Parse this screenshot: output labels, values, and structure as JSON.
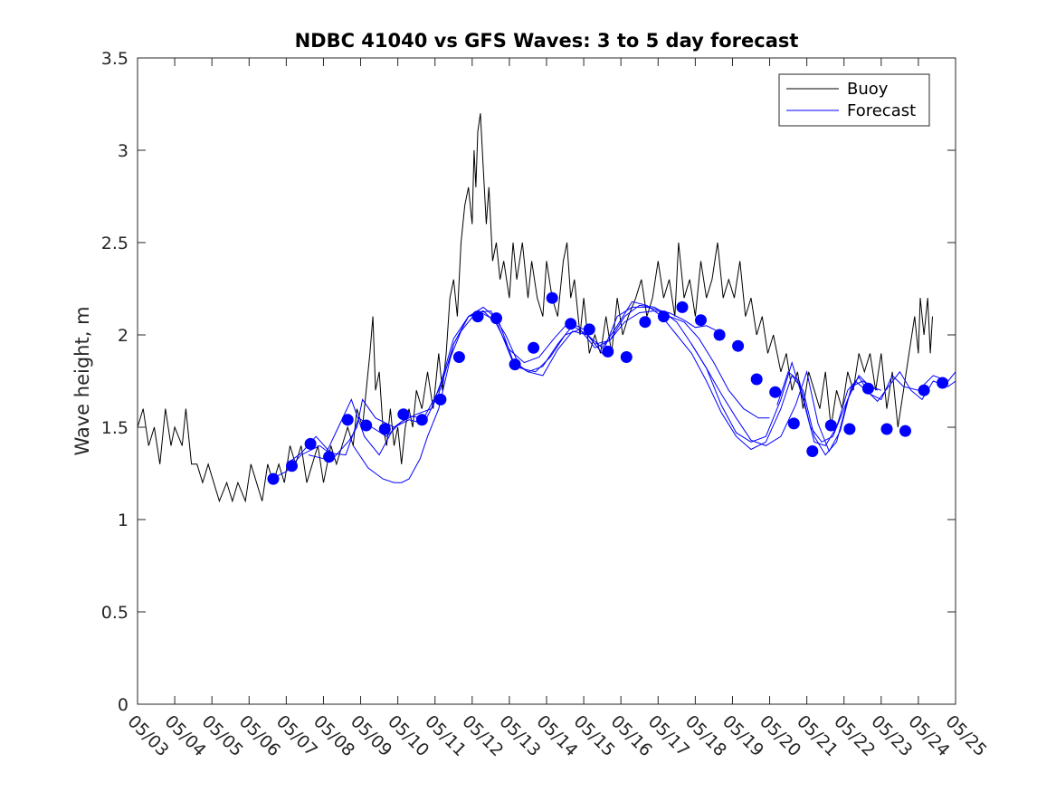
{
  "chart_data": {
    "type": "line",
    "title": "NDBC 41040 vs GFS Waves: 3 to 5 day forecast",
    "xlabel": "",
    "ylabel": "Wave height, m",
    "xlim": [
      "05/03",
      "05/25"
    ],
    "ylim": [
      0,
      3.5
    ],
    "x_tick_labels": [
      "05/03",
      "05/04",
      "05/05",
      "05/06",
      "05/07",
      "05/08",
      "05/09",
      "05/10",
      "05/11",
      "05/12",
      "05/13",
      "05/14",
      "05/15",
      "05/16",
      "05/17",
      "05/18",
      "05/19",
      "05/20",
      "05/21",
      "05/22",
      "05/23",
      "05/24",
      "05/25"
    ],
    "y_ticks": [
      0,
      0.5,
      1,
      1.5,
      2,
      2.5,
      3,
      3.5
    ],
    "y_tick_labels": [
      "0",
      "0.5",
      "1",
      "1.5",
      "2",
      "2.5",
      "3",
      "3.5"
    ],
    "grid": false,
    "legend": {
      "position": "top-right",
      "entries": [
        "Buoy",
        "Forecast"
      ]
    },
    "colors": {
      "buoy": "#000000",
      "forecast": "#0000ff"
    },
    "buoy_series": [
      [
        0,
        1.5
      ],
      [
        0.15,
        1.6
      ],
      [
        0.3,
        1.4
      ],
      [
        0.45,
        1.5
      ],
      [
        0.6,
        1.3
      ],
      [
        0.75,
        1.6
      ],
      [
        0.9,
        1.4
      ],
      [
        1.0,
        1.5
      ],
      [
        1.2,
        1.4
      ],
      [
        1.3,
        1.6
      ],
      [
        1.45,
        1.3
      ],
      [
        1.6,
        1.3
      ],
      [
        1.75,
        1.2
      ],
      [
        1.9,
        1.3
      ],
      [
        2.05,
        1.2
      ],
      [
        2.2,
        1.1
      ],
      [
        2.4,
        1.2
      ],
      [
        2.55,
        1.1
      ],
      [
        2.7,
        1.2
      ],
      [
        2.9,
        1.1
      ],
      [
        3.05,
        1.3
      ],
      [
        3.2,
        1.2
      ],
      [
        3.35,
        1.1
      ],
      [
        3.5,
        1.3
      ],
      [
        3.65,
        1.2
      ],
      [
        3.8,
        1.3
      ],
      [
        3.95,
        1.2
      ],
      [
        4.1,
        1.4
      ],
      [
        4.25,
        1.3
      ],
      [
        4.4,
        1.4
      ],
      [
        4.55,
        1.2
      ],
      [
        4.7,
        1.3
      ],
      [
        4.85,
        1.4
      ],
      [
        5.0,
        1.2
      ],
      [
        5.2,
        1.4
      ],
      [
        5.35,
        1.3
      ],
      [
        5.5,
        1.4
      ],
      [
        5.65,
        1.5
      ],
      [
        5.8,
        1.4
      ],
      [
        5.9,
        1.6
      ],
      [
        6.05,
        1.5
      ],
      [
        6.15,
        1.7
      ],
      [
        6.25,
        1.9
      ],
      [
        6.33,
        2.1
      ],
      [
        6.4,
        1.7
      ],
      [
        6.5,
        1.8
      ],
      [
        6.6,
        1.5
      ],
      [
        6.7,
        1.4
      ],
      [
        6.8,
        1.6
      ],
      [
        6.9,
        1.4
      ],
      [
        7.0,
        1.5
      ],
      [
        7.1,
        1.3
      ],
      [
        7.2,
        1.5
      ],
      [
        7.3,
        1.6
      ],
      [
        7.4,
        1.5
      ],
      [
        7.5,
        1.7
      ],
      [
        7.65,
        1.6
      ],
      [
        7.8,
        1.8
      ],
      [
        7.95,
        1.6
      ],
      [
        8.1,
        1.9
      ],
      [
        8.2,
        1.7
      ],
      [
        8.3,
        1.9
      ],
      [
        8.4,
        2.2
      ],
      [
        8.5,
        2.3
      ],
      [
        8.6,
        2.1
      ],
      [
        8.7,
        2.5
      ],
      [
        8.8,
        2.7
      ],
      [
        8.9,
        2.8
      ],
      [
        9.0,
        2.6
      ],
      [
        9.05,
        3.0
      ],
      [
        9.1,
        2.8
      ],
      [
        9.15,
        3.1
      ],
      [
        9.22,
        3.2
      ],
      [
        9.3,
        2.9
      ],
      [
        9.38,
        2.6
      ],
      [
        9.45,
        2.8
      ],
      [
        9.55,
        2.4
      ],
      [
        9.65,
        2.5
      ],
      [
        9.75,
        2.3
      ],
      [
        9.85,
        2.4
      ],
      [
        10.0,
        2.2
      ],
      [
        10.1,
        2.5
      ],
      [
        10.2,
        2.3
      ],
      [
        10.35,
        2.5
      ],
      [
        10.5,
        2.2
      ],
      [
        10.6,
        2.4
      ],
      [
        10.75,
        2.2
      ],
      [
        10.9,
        2.1
      ],
      [
        11.0,
        2.4
      ],
      [
        11.15,
        2.2
      ],
      [
        11.3,
        2.1
      ],
      [
        11.45,
        2.4
      ],
      [
        11.55,
        2.5
      ],
      [
        11.65,
        2.2
      ],
      [
        11.75,
        2.3
      ],
      [
        11.9,
        2.0
      ],
      [
        12.0,
        2.2
      ],
      [
        12.15,
        1.9
      ],
      [
        12.3,
        2.0
      ],
      [
        12.45,
        1.9
      ],
      [
        12.6,
        2.1
      ],
      [
        12.75,
        1.9
      ],
      [
        12.9,
        2.2
      ],
      [
        13.05,
        2.0
      ],
      [
        13.2,
        2.1
      ],
      [
        13.4,
        2.2
      ],
      [
        13.55,
        2.3
      ],
      [
        13.7,
        2.1
      ],
      [
        13.85,
        2.2
      ],
      [
        14.0,
        2.4
      ],
      [
        14.15,
        2.2
      ],
      [
        14.3,
        2.3
      ],
      [
        14.45,
        2.1
      ],
      [
        14.55,
        2.5
      ],
      [
        14.7,
        2.2
      ],
      [
        14.85,
        2.3
      ],
      [
        15.0,
        2.1
      ],
      [
        15.15,
        2.4
      ],
      [
        15.3,
        2.2
      ],
      [
        15.45,
        2.3
      ],
      [
        15.6,
        2.5
      ],
      [
        15.75,
        2.2
      ],
      [
        15.9,
        2.3
      ],
      [
        16.05,
        2.2
      ],
      [
        16.2,
        2.4
      ],
      [
        16.35,
        2.1
      ],
      [
        16.5,
        2.2
      ],
      [
        16.65,
        2.0
      ],
      [
        16.8,
        2.1
      ],
      [
        16.95,
        1.9
      ],
      [
        17.1,
        2.0
      ],
      [
        17.3,
        1.8
      ],
      [
        17.45,
        1.9
      ],
      [
        17.6,
        1.7
      ],
      [
        17.75,
        1.8
      ],
      [
        17.9,
        1.6
      ],
      [
        18.05,
        1.8
      ],
      [
        18.2,
        1.7
      ],
      [
        18.35,
        1.6
      ],
      [
        18.5,
        1.8
      ],
      [
        18.65,
        1.5
      ],
      [
        18.8,
        1.7
      ],
      [
        18.95,
        1.6
      ],
      [
        19.1,
        1.8
      ],
      [
        19.25,
        1.7
      ],
      [
        19.4,
        1.9
      ],
      [
        19.55,
        1.8
      ],
      [
        19.7,
        1.9
      ],
      [
        19.85,
        1.7
      ],
      [
        20.0,
        1.9
      ],
      [
        20.15,
        1.6
      ],
      [
        20.3,
        1.8
      ],
      [
        20.45,
        1.5
      ],
      [
        20.6,
        1.7
      ],
      [
        20.75,
        1.9
      ],
      [
        20.9,
        2.1
      ],
      [
        21.0,
        1.9
      ],
      [
        21.05,
        2.2
      ],
      [
        21.15,
        2.0
      ],
      [
        21.25,
        2.2
      ],
      [
        21.32,
        1.9
      ],
      [
        21.38,
        2.1
      ]
    ],
    "forecast_lines": [
      [
        [
          3.6,
          1.22
        ],
        [
          4.0,
          1.26
        ],
        [
          4.4,
          1.35
        ],
        [
          4.9,
          1.4
        ],
        [
          5.3,
          1.34
        ],
        [
          5.7,
          1.43
        ],
        [
          5.9,
          1.5
        ],
        [
          6.05,
          1.65
        ],
        [
          6.4,
          1.55
        ],
        [
          6.9,
          1.5
        ],
        [
          7.3,
          1.56
        ],
        [
          7.7,
          1.55
        ],
        [
          8.1,
          1.7
        ],
        [
          8.5,
          1.98
        ],
        [
          8.9,
          2.1
        ],
        [
          9.25,
          2.12
        ],
        [
          9.6,
          2.08
        ],
        [
          10.0,
          1.92
        ],
        [
          10.4,
          1.85
        ],
        [
          10.8,
          1.88
        ],
        [
          11.2,
          1.98
        ],
        [
          11.6,
          2.07
        ],
        [
          12.0,
          2.03
        ],
        [
          12.3,
          1.95
        ],
        [
          12.7,
          1.97
        ],
        [
          13.1,
          2.07
        ],
        [
          13.5,
          2.12
        ],
        [
          13.9,
          2.13
        ],
        [
          14.3,
          2.12
        ],
        [
          14.7,
          2.08
        ],
        [
          15.0,
          2.04
        ],
        [
          15.3,
          2.05
        ],
        [
          15.6,
          2.02
        ]
      ],
      [
        [
          4.0,
          1.3
        ],
        [
          4.4,
          1.36
        ],
        [
          4.8,
          1.45
        ],
        [
          5.2,
          1.36
        ],
        [
          5.6,
          1.35
        ],
        [
          5.95,
          1.55
        ],
        [
          6.3,
          1.5
        ],
        [
          6.7,
          1.45
        ],
        [
          7.1,
          1.53
        ],
        [
          7.5,
          1.57
        ],
        [
          7.9,
          1.6
        ],
        [
          8.3,
          1.82
        ],
        [
          8.7,
          2.02
        ],
        [
          9.1,
          2.12
        ],
        [
          9.5,
          2.13
        ],
        [
          9.9,
          2.0
        ],
        [
          10.3,
          1.82
        ],
        [
          10.7,
          1.8
        ],
        [
          11.1,
          1.88
        ],
        [
          11.5,
          2.0
        ],
        [
          11.9,
          2.03
        ],
        [
          12.3,
          1.93
        ],
        [
          12.7,
          1.97
        ],
        [
          13.1,
          2.1
        ],
        [
          13.5,
          2.16
        ],
        [
          13.9,
          2.15
        ],
        [
          14.3,
          2.1
        ],
        [
          14.7,
          2.07
        ],
        [
          15.1,
          1.98
        ],
        [
          15.5,
          1.85
        ],
        [
          15.9,
          1.7
        ],
        [
          16.3,
          1.6
        ],
        [
          16.7,
          1.55
        ],
        [
          17.0,
          1.55
        ]
      ],
      [
        [
          4.6,
          1.35
        ],
        [
          5.0,
          1.33
        ],
        [
          5.4,
          1.5
        ],
        [
          5.75,
          1.65
        ],
        [
          6.1,
          1.45
        ],
        [
          6.5,
          1.35
        ],
        [
          6.9,
          1.5
        ],
        [
          7.3,
          1.54
        ],
        [
          7.7,
          1.52
        ],
        [
          8.1,
          1.68
        ],
        [
          8.5,
          1.95
        ],
        [
          8.9,
          2.1
        ],
        [
          9.3,
          2.15
        ],
        [
          9.7,
          2.08
        ],
        [
          10.1,
          1.86
        ],
        [
          10.5,
          1.8
        ],
        [
          10.9,
          1.78
        ],
        [
          11.3,
          1.92
        ],
        [
          11.7,
          2.02
        ],
        [
          12.1,
          2.0
        ],
        [
          12.5,
          1.9
        ],
        [
          12.9,
          2.1
        ],
        [
          13.3,
          2.15
        ],
        [
          13.7,
          2.15
        ],
        [
          14.1,
          2.13
        ],
        [
          14.5,
          2.07
        ],
        [
          14.9,
          1.95
        ],
        [
          15.3,
          1.82
        ],
        [
          15.7,
          1.68
        ],
        [
          16.1,
          1.55
        ],
        [
          16.5,
          1.43
        ],
        [
          16.9,
          1.4
        ],
        [
          17.3,
          1.45
        ],
        [
          17.7,
          1.62
        ],
        [
          18.0,
          1.8
        ],
        [
          18.3,
          1.52
        ],
        [
          18.6,
          1.37
        ],
        [
          18.9,
          1.48
        ],
        [
          19.2,
          1.72
        ],
        [
          19.5,
          1.75
        ],
        [
          19.9,
          1.7
        ]
      ],
      [
        [
          5.8,
          1.4
        ],
        [
          6.2,
          1.28
        ],
        [
          6.6,
          1.22
        ],
        [
          6.9,
          1.2
        ],
        [
          7.1,
          1.2
        ],
        [
          7.3,
          1.22
        ],
        [
          7.6,
          1.33
        ],
        [
          7.8,
          1.45
        ],
        [
          8.1,
          1.6
        ],
        [
          8.5,
          1.95
        ],
        [
          8.9,
          2.1
        ],
        [
          9.3,
          2.13
        ],
        [
          9.7,
          2.05
        ],
        [
          10.1,
          1.85
        ],
        [
          10.5,
          1.8
        ],
        [
          10.9,
          1.83
        ],
        [
          11.3,
          1.95
        ],
        [
          11.7,
          2.05
        ],
        [
          12.1,
          2.0
        ],
        [
          12.5,
          1.93
        ],
        [
          12.9,
          2.05
        ],
        [
          13.3,
          2.18
        ],
        [
          13.7,
          2.16
        ],
        [
          14.1,
          2.1
        ],
        [
          14.5,
          2.0
        ],
        [
          14.9,
          1.9
        ],
        [
          15.3,
          1.75
        ],
        [
          15.7,
          1.58
        ],
        [
          16.1,
          1.45
        ],
        [
          16.5,
          1.38
        ],
        [
          16.9,
          1.42
        ],
        [
          17.3,
          1.6
        ],
        [
          17.6,
          1.78
        ],
        [
          17.9,
          1.7
        ],
        [
          18.2,
          1.45
        ],
        [
          18.5,
          1.35
        ],
        [
          18.8,
          1.42
        ],
        [
          19.1,
          1.65
        ],
        [
          19.4,
          1.78
        ],
        [
          19.7,
          1.72
        ],
        [
          20.0,
          1.7
        ]
      ],
      [
        [
          14.9,
          1.95
        ],
        [
          15.3,
          1.82
        ],
        [
          15.7,
          1.62
        ],
        [
          16.1,
          1.47
        ],
        [
          16.5,
          1.42
        ],
        [
          16.9,
          1.45
        ],
        [
          17.3,
          1.65
        ],
        [
          17.6,
          1.85
        ],
        [
          17.9,
          1.65
        ],
        [
          18.2,
          1.42
        ],
        [
          18.5,
          1.4
        ],
        [
          18.8,
          1.5
        ],
        [
          19.1,
          1.7
        ],
        [
          19.4,
          1.77
        ],
        [
          19.7,
          1.68
        ],
        [
          20.0,
          1.65
        ],
        [
          20.3,
          1.78
        ],
        [
          20.6,
          1.72
        ],
        [
          21.0,
          1.7
        ],
        [
          21.4,
          1.78
        ],
        [
          21.8,
          1.75
        ],
        [
          22.0,
          1.8
        ]
      ],
      [
        [
          17.2,
          1.62
        ],
        [
          17.5,
          1.8
        ],
        [
          17.8,
          1.75
        ],
        [
          18.1,
          1.5
        ],
        [
          18.4,
          1.42
        ],
        [
          18.7,
          1.45
        ],
        [
          19.0,
          1.6
        ],
        [
          19.3,
          1.75
        ],
        [
          19.6,
          1.7
        ],
        [
          19.9,
          1.64
        ],
        [
          20.2,
          1.72
        ],
        [
          20.5,
          1.8
        ],
        [
          20.8,
          1.7
        ],
        [
          21.1,
          1.65
        ],
        [
          21.4,
          1.75
        ],
        [
          21.8,
          1.72
        ],
        [
          22.0,
          1.75
        ]
      ]
    ],
    "forecast_points": [
      [
        3.65,
        1.22
      ],
      [
        4.15,
        1.29
      ],
      [
        4.65,
        1.41
      ],
      [
        5.15,
        1.34
      ],
      [
        5.65,
        1.54
      ],
      [
        6.15,
        1.51
      ],
      [
        6.65,
        1.49
      ],
      [
        7.15,
        1.57
      ],
      [
        7.65,
        1.54
      ],
      [
        8.15,
        1.65
      ],
      [
        8.65,
        1.88
      ],
      [
        9.15,
        2.1
      ],
      [
        9.65,
        2.09
      ],
      [
        10.15,
        1.84
      ],
      [
        10.65,
        1.93
      ],
      [
        11.15,
        2.2
      ],
      [
        11.65,
        2.06
      ],
      [
        12.15,
        2.03
      ],
      [
        12.65,
        1.91
      ],
      [
        13.15,
        1.88
      ],
      [
        13.65,
        2.07
      ],
      [
        14.15,
        2.1
      ],
      [
        14.65,
        2.15
      ],
      [
        15.15,
        2.08
      ],
      [
        15.65,
        2.0
      ],
      [
        16.15,
        1.94
      ],
      [
        16.65,
        1.76
      ],
      [
        17.15,
        1.69
      ],
      [
        17.65,
        1.52
      ],
      [
        18.15,
        1.37
      ],
      [
        18.65,
        1.51
      ],
      [
        19.15,
        1.49
      ],
      [
        19.65,
        1.71
      ],
      [
        20.15,
        1.49
      ],
      [
        20.65,
        1.48
      ],
      [
        21.15,
        1.7
      ],
      [
        21.65,
        1.74
      ]
    ]
  }
}
